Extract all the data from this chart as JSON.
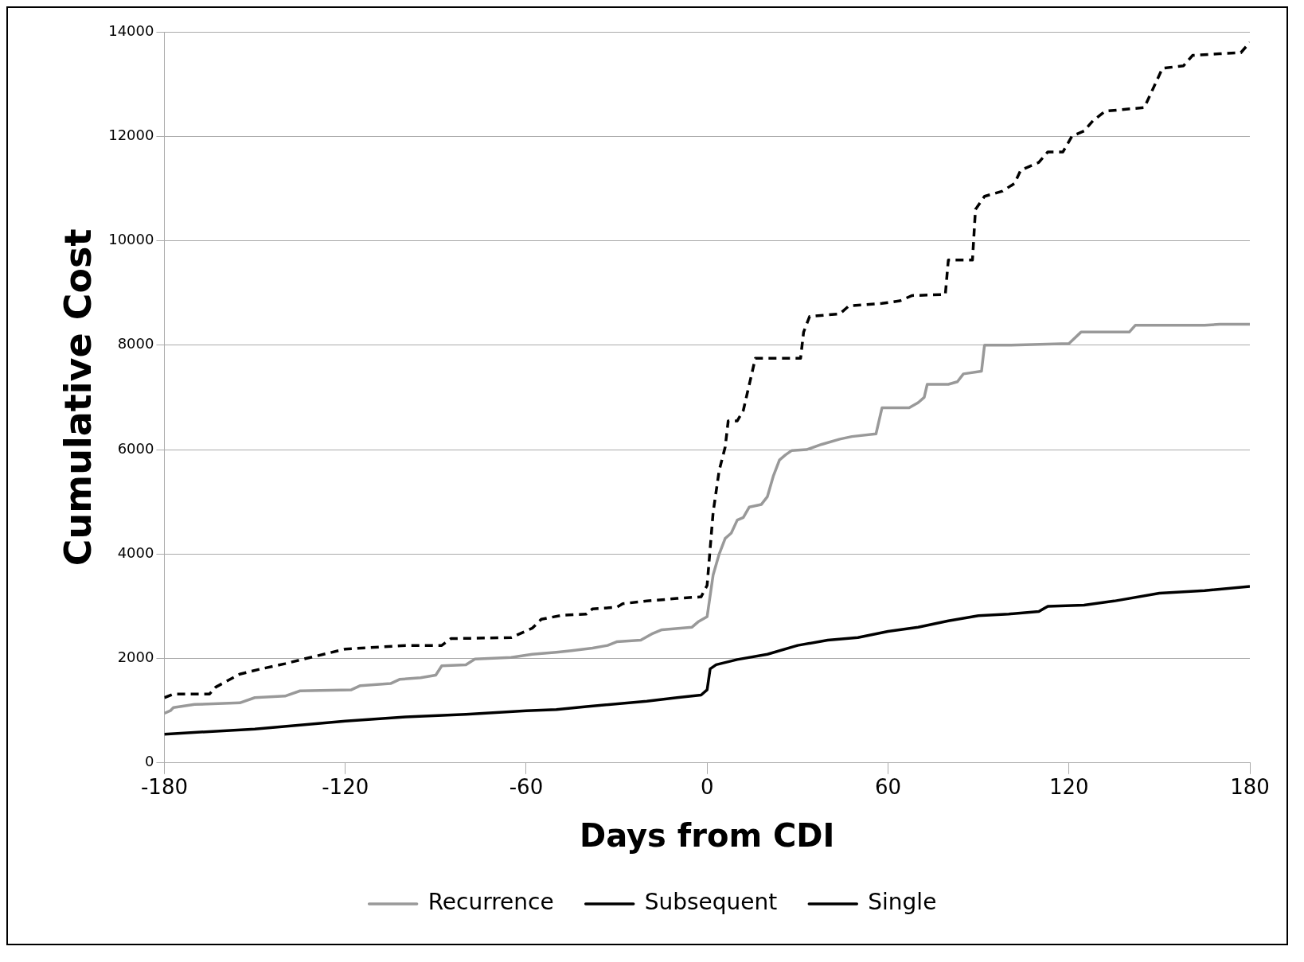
{
  "chart_data": {
    "type": "line",
    "xlabel": "Days from CDI",
    "ylabel": "Cumulative Cost",
    "xlim": [
      -180,
      180
    ],
    "xticks": [
      -180,
      -120,
      -60,
      0,
      60,
      120,
      180
    ],
    "ylim": [
      0,
      14000
    ],
    "yticks": [
      0,
      2000,
      4000,
      6000,
      8000,
      10000,
      12000,
      14000
    ],
    "grid": "y",
    "legend": "bottom",
    "marker": "none",
    "series": [
      {
        "name": "Recurrence",
        "color": "#999999",
        "line_style": "solid",
        "x": [
          -180,
          -178,
          -177,
          -170,
          -155,
          -150,
          -140,
          -135,
          -118,
          -115,
          -105,
          -102,
          -95,
          -90,
          -88,
          -80,
          -77,
          -65,
          -58,
          -50,
          -45,
          -38,
          -33,
          -30,
          -22,
          -18,
          -15,
          -5,
          -3,
          0,
          2,
          4,
          6,
          8,
          10,
          12,
          14,
          18,
          20,
          22,
          24,
          26,
          28,
          33,
          38,
          44,
          48,
          56,
          58,
          67,
          70,
          72,
          73,
          80,
          83,
          85,
          91,
          92,
          100,
          120,
          124,
          140,
          142,
          165,
          170,
          180
        ],
        "values": [
          950,
          1000,
          1060,
          1120,
          1150,
          1250,
          1280,
          1380,
          1400,
          1480,
          1520,
          1600,
          1630,
          1680,
          1860,
          1880,
          1990,
          2020,
          2080,
          2120,
          2150,
          2200,
          2250,
          2320,
          2350,
          2480,
          2550,
          2600,
          2700,
          2800,
          3600,
          4000,
          4300,
          4400,
          4650,
          4700,
          4900,
          4950,
          5100,
          5500,
          5800,
          5900,
          5980,
          6000,
          6100,
          6200,
          6250,
          6300,
          6800,
          6800,
          6900,
          7000,
          7250,
          7250,
          7300,
          7450,
          7500,
          8000,
          8000,
          8030,
          8250,
          8250,
          8380,
          8380,
          8400,
          8400
        ]
      },
      {
        "name": "Subsequent",
        "color": "#000000",
        "line_style": "dashed",
        "x": [
          -180,
          -177,
          -165,
          -163,
          -155,
          -148,
          -140,
          -133,
          -120,
          -100,
          -88,
          -85,
          -65,
          -58,
          -55,
          -48,
          -40,
          -38,
          -30,
          -28,
          -20,
          -10,
          -2,
          0,
          2,
          4,
          6,
          7,
          10,
          12,
          14,
          16,
          24,
          31,
          32,
          34,
          44,
          47,
          58,
          64,
          68,
          79,
          80,
          88,
          89,
          92,
          98,
          102,
          104,
          110,
          113,
          118,
          121,
          125,
          128,
          132,
          145,
          151,
          158,
          161,
          170,
          177,
          180
        ],
        "values": [
          1250,
          1320,
          1320,
          1450,
          1700,
          1800,
          1900,
          2000,
          2180,
          2250,
          2250,
          2380,
          2400,
          2580,
          2750,
          2830,
          2850,
          2950,
          2980,
          3050,
          3100,
          3150,
          3180,
          3400,
          4800,
          5600,
          6050,
          6550,
          6550,
          6750,
          7250,
          7750,
          7750,
          7750,
          8250,
          8550,
          8600,
          8750,
          8800,
          8850,
          8950,
          8970,
          9630,
          9630,
          10600,
          10850,
          10950,
          11100,
          11350,
          11500,
          11700,
          11700,
          12000,
          12100,
          12300,
          12480,
          12550,
          13300,
          13350,
          13550,
          13580,
          13600,
          13800
        ]
      },
      {
        "name": "Single",
        "color": "#000000",
        "line_style": "solid",
        "x": [
          -180,
          -150,
          -120,
          -100,
          -80,
          -60,
          -50,
          -40,
          -20,
          -10,
          -2,
          0,
          1,
          3,
          10,
          20,
          30,
          40,
          50,
          60,
          70,
          80,
          90,
          100,
          110,
          113,
          125,
          135,
          150,
          165,
          180
        ],
        "values": [
          550,
          650,
          800,
          880,
          930,
          1000,
          1020,
          1080,
          1180,
          1250,
          1300,
          1400,
          1800,
          1880,
          1980,
          2080,
          2250,
          2350,
          2400,
          2520,
          2600,
          2720,
          2820,
          2850,
          2900,
          3000,
          3020,
          3100,
          3250,
          3300,
          3380
        ]
      }
    ]
  }
}
